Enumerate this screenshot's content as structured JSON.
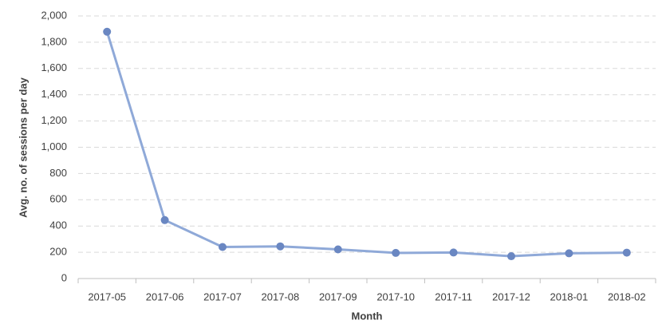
{
  "chart_data": {
    "type": "line",
    "x_label": "Month",
    "y_label": "Avg. no. of sessions per day",
    "categories": [
      "2017-05",
      "2017-06",
      "2017-07",
      "2017-08",
      "2017-09",
      "2017-10",
      "2017-11",
      "2017-12",
      "2018-01",
      "2018-02"
    ],
    "values": [
      1880,
      445,
      240,
      245,
      222,
      195,
      198,
      170,
      192,
      197
    ],
    "line_color": "#8fa9d8",
    "marker_color": "#6a87c2",
    "ylim": [
      0,
      2000
    ],
    "yticks": [
      0,
      200,
      400,
      600,
      800,
      {
        "value": 1000,
        "label": "1,000"
      },
      {
        "value": 1200,
        "label": "1,200"
      },
      {
        "value": 1400,
        "label": "1,400"
      },
      {
        "value": 1600,
        "label": "1,600"
      },
      {
        "value": 1800,
        "label": "1,800"
      },
      {
        "value": 2000,
        "label": "2,000"
      }
    ],
    "grid": true
  }
}
